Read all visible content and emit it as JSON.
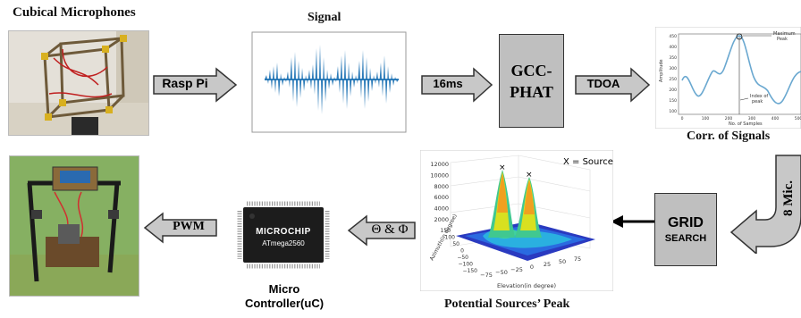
{
  "labels": {
    "cubical_mics": "Cubical Microphones",
    "signal": "Signal",
    "gcc_line1": "GCC-",
    "gcc_line2": "PHAT",
    "corr": "Corr. of Signals",
    "grid_line1": "GRID",
    "grid_line2": "SEARCH",
    "potential_peak": "Potential Sources’ Peak",
    "micro_line1": "Micro",
    "micro_line2": "Controller(uC)"
  },
  "arrows": {
    "rasp_pi": "Rasp Pi",
    "ms16": "16ms",
    "tdoa": "TDOA",
    "eight_mic": "8 Mic.",
    "theta_phi": "Θ & Φ",
    "pwm": "PWM"
  },
  "chip": {
    "brand": "MICROCHIP",
    "model": "ATmega2560"
  },
  "corr_plot": {
    "max_peak_label_1": "Maximum",
    "max_peak_label_2": "Peak",
    "index_label_1": "Index of",
    "index_label_2": "peak",
    "ylabel": "Amplitude",
    "xlabel": "No. of Samples",
    "yticks": [
      "450",
      "400",
      "350",
      "300",
      "250",
      "200",
      "150",
      "100"
    ],
    "xticks": [
      "0",
      "100",
      "200",
      "300",
      "400",
      "500"
    ]
  },
  "surface_plot": {
    "legend": "X = Source",
    "zticks": [
      "12000",
      "10000",
      "8000",
      "6000",
      "4000",
      "2000"
    ],
    "yticks": [
      "150",
      "100",
      "50",
      "0",
      "−50",
      "−100",
      "−150"
    ],
    "xticks": [
      "−75",
      "−50",
      "−25",
      "0",
      "25",
      "50",
      "75"
    ],
    "ylabel": "Azimuth(in degree)",
    "xlabel": "Elevation(in degree)"
  }
}
